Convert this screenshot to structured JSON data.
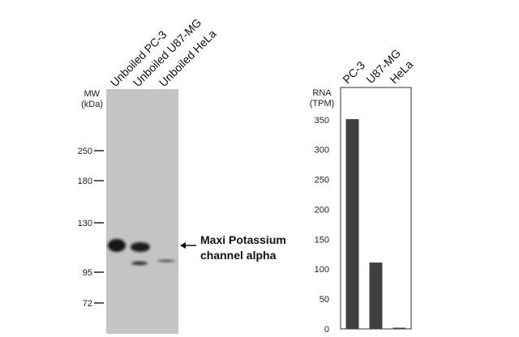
{
  "blot": {
    "lane_labels": [
      "Unboiled PC-3",
      "Unboiled U87-MG",
      "Unboiled HeLa"
    ],
    "mw_label": [
      "MW",
      "(kDa)"
    ],
    "markers": [
      "250",
      "180",
      "130",
      "95",
      "72"
    ],
    "annotation": [
      "Maxi Potassium",
      "channel alpha"
    ]
  },
  "chart_data": {
    "type": "bar",
    "ylabel": [
      "RNA",
      "(TPM)"
    ],
    "categories": [
      "PC-3",
      "U87-MG",
      "HeLa"
    ],
    "values": [
      351,
      111,
      2
    ],
    "color": "#404040",
    "ylim": [
      0,
      404
    ],
    "yticks": [
      0,
      50,
      100,
      150,
      200,
      250,
      300,
      350
    ]
  }
}
